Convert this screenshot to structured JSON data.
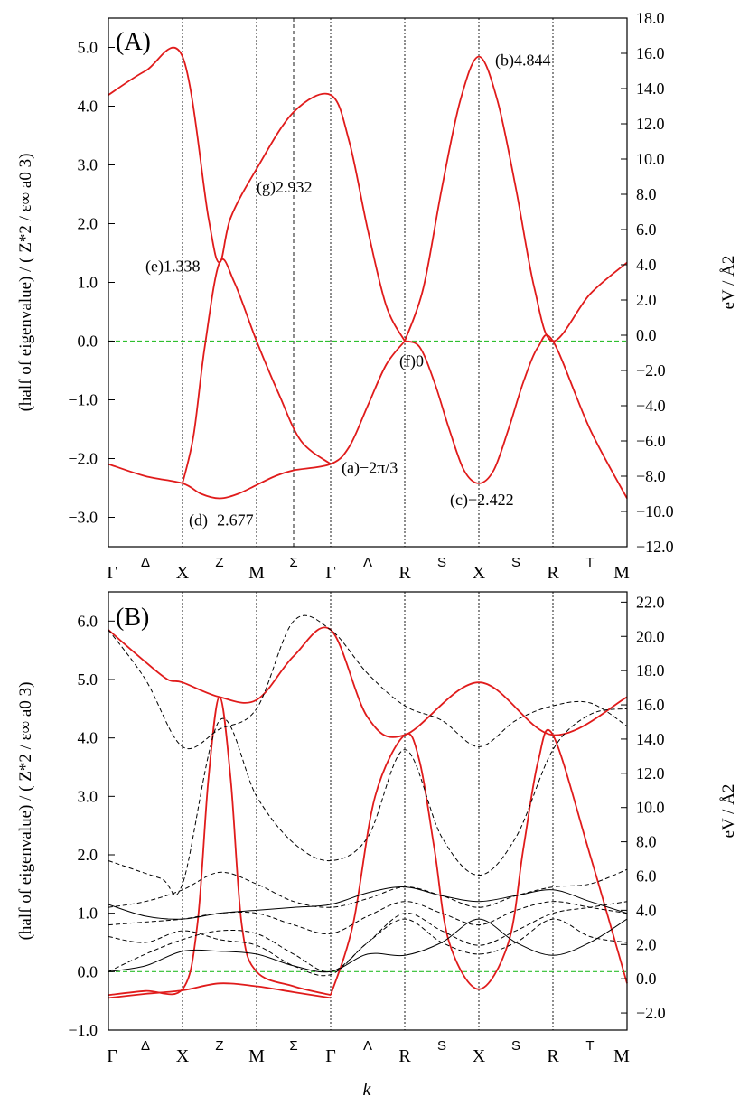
{
  "chart_data": [
    {
      "type": "line",
      "panel_label": "(A)",
      "ylabel_left": "(half of eigenvalue) / ( Z*2 / ε∞ a0 3)",
      "ylabel_right": "eV / Å2",
      "ylim": [
        -3.5,
        5.5
      ],
      "ylim_right": [
        -12.0,
        18.0
      ],
      "yticks": [
        "−3.0",
        "−2.0",
        "−1.0",
        "0.0",
        "1.0",
        "2.0",
        "3.0",
        "4.0",
        "5.0"
      ],
      "yticks_right": [
        "−12.0",
        "−10.0",
        "−8.0",
        "−6.0",
        "−4.0",
        "−2.0",
        "0.0",
        "2.0",
        "4.0",
        "6.0",
        "8.0",
        "10.0",
        "12.0",
        "14.0",
        "16.0",
        "18.0"
      ],
      "kpoints": [
        "Γ",
        "X",
        "M",
        "Γ",
        "R",
        "X",
        "R",
        "M"
      ],
      "segment_labels": [
        "Δ",
        "Z",
        "Σ",
        "Λ",
        "S",
        "S",
        "T"
      ],
      "zero_line": true,
      "annotations": [
        {
          "text": "(a)−2π/3",
          "x": 3.0,
          "y": -2.094
        },
        {
          "text": "(b)4.844",
          "x": 5.0,
          "y": 4.844
        },
        {
          "text": "(c)−2.422",
          "x": 5.0,
          "y": -2.422
        },
        {
          "text": "(d)−2.677",
          "x": 1.5,
          "y": -2.677
        },
        {
          "text": "(e)1.338",
          "x": 1.5,
          "y": 1.338
        },
        {
          "text": "(f)0",
          "x": 4.0,
          "y": 0.0
        },
        {
          "text": "(g)2.932",
          "x": 2.0,
          "y": 2.932
        }
      ],
      "series": [
        {
          "style": "solid-red",
          "x": [
            0,
            0.5,
            1.0,
            1.35,
            1.5,
            1.65,
            2.0,
            2.5,
            3.0,
            3.25,
            3.5,
            3.75,
            4.0
          ],
          "y": [
            4.19,
            4.6,
            4.844,
            2.1,
            1.338,
            2.1,
            2.932,
            3.9,
            4.19,
            3.4,
            1.9,
            0.6,
            0.0
          ]
        },
        {
          "style": "solid-red",
          "x": [
            0,
            0.5,
            1.0,
            1.25,
            1.5,
            1.75,
            2.0,
            2.25,
            2.5,
            3.0,
            3.25,
            3.5,
            3.75,
            4.0
          ],
          "y": [
            -2.094,
            -2.3,
            -2.422,
            -2.6,
            -2.677,
            -2.6,
            -2.45,
            -2.3,
            -2.2,
            -2.094,
            -1.8,
            -1.1,
            -0.4,
            0.0
          ]
        },
        {
          "style": "solid-red",
          "x": [
            1.0,
            1.15,
            1.3,
            1.5,
            1.7,
            2.0,
            2.3,
            2.6,
            3.0
          ],
          "y": [
            -2.422,
            -1.6,
            -0.1,
            1.338,
            1.0,
            0.0,
            -0.9,
            -1.7,
            -2.094
          ]
        },
        {
          "style": "solid-red",
          "x": [
            4.0,
            4.25,
            4.5,
            4.75,
            5.0,
            5.25,
            5.5,
            5.75,
            6.0,
            6.5,
            7.0
          ],
          "y": [
            0.0,
            0.9,
            2.6,
            4.1,
            4.844,
            4.1,
            2.6,
            0.9,
            0.0,
            0.8,
            1.338
          ]
        },
        {
          "style": "solid-red",
          "x": [
            4.0,
            4.2,
            4.4,
            4.6,
            4.8,
            5.0,
            5.2,
            5.4,
            5.6,
            5.8,
            6.0,
            6.5,
            7.0
          ],
          "y": [
            0.0,
            -0.1,
            -0.7,
            -1.5,
            -2.2,
            -2.422,
            -2.2,
            -1.5,
            -0.7,
            -0.1,
            0.0,
            -1.5,
            -2.677
          ]
        }
      ]
    },
    {
      "type": "line",
      "panel_label": "(B)",
      "ylabel_left": "(half of eigenvalue) / ( Z*2 / ε∞ a0 3)",
      "ylabel_right": "eV / Å2",
      "xlabel": "k",
      "ylim": [
        -1.0,
        6.5
      ],
      "ylim_right": [
        -3.0,
        22.6
      ],
      "yticks": [
        "−1.0",
        "0.0",
        "1.0",
        "2.0",
        "3.0",
        "4.0",
        "5.0",
        "6.0"
      ],
      "yticks_right": [
        "−2.0",
        "0.0",
        "2.0",
        "4.0",
        "6.0",
        "8.0",
        "10.0",
        "12.0",
        "14.0",
        "16.0",
        "18.0",
        "20.0",
        "22.0"
      ],
      "kpoints": [
        "Γ",
        "X",
        "M",
        "Γ",
        "R",
        "X",
        "R",
        "M"
      ],
      "segment_labels": [
        "Δ",
        "Z",
        "Σ",
        "Λ",
        "S",
        "S",
        "T"
      ],
      "zero_line": true,
      "series": [
        {
          "style": "solid-red",
          "x": [
            0,
            0.5,
            0.8,
            1.0,
            1.5,
            2.0,
            2.5,
            3.0,
            3.5,
            4.0,
            5.0,
            6.0,
            7.0
          ],
          "y": [
            5.85,
            5.3,
            5.0,
            4.95,
            4.7,
            4.65,
            5.4,
            5.85,
            4.35,
            4.05,
            4.95,
            4.05,
            4.7
          ]
        },
        {
          "style": "solid-red",
          "x": [
            0,
            0.5,
            1.0,
            1.2,
            1.35,
            1.5,
            1.65,
            1.8,
            2.0,
            2.5,
            3.0
          ],
          "y": [
            -0.4,
            -0.33,
            -0.3,
            0.8,
            3.3,
            4.7,
            3.3,
            0.8,
            0.0,
            -0.25,
            -0.4
          ]
        },
        {
          "style": "solid-red",
          "x": [
            3.0,
            3.3,
            3.6,
            4.0,
            4.2,
            4.4,
            4.6,
            5.0,
            5.4,
            5.6,
            5.8,
            6.0,
            6.5,
            7.0
          ],
          "y": [
            -0.4,
            0.8,
            3.0,
            4.05,
            3.6,
            2.1,
            0.5,
            -0.3,
            0.5,
            2.1,
            3.6,
            4.05,
            2.0,
            -0.2
          ]
        },
        {
          "style": "solid-red",
          "x": [
            0,
            0.5,
            1.0,
            1.5,
            2.0,
            2.5,
            3.0
          ],
          "y": [
            -0.45,
            -0.38,
            -0.32,
            -0.2,
            -0.25,
            -0.35,
            -0.45
          ]
        },
        {
          "style": "dashed-black",
          "x": [
            0,
            0.5,
            1.0,
            1.5,
            2.0,
            2.5,
            3.0,
            3.5,
            4.0,
            4.5,
            5.0,
            5.5,
            6.0,
            6.5,
            7.0
          ],
          "y": [
            5.85,
            5.0,
            3.85,
            4.15,
            4.5,
            6.0,
            5.85,
            5.1,
            4.55,
            4.3,
            3.85,
            4.3,
            4.55,
            4.6,
            4.2
          ]
        },
        {
          "style": "dashed-black",
          "x": [
            0,
            0.7,
            1.0,
            1.5,
            2.0,
            2.5,
            3.0,
            3.5,
            4.0,
            4.5,
            5.0,
            5.5,
            6.0,
            6.5,
            7.0
          ],
          "y": [
            1.9,
            1.6,
            1.5,
            4.3,
            3.0,
            2.2,
            1.9,
            2.3,
            3.8,
            2.3,
            1.65,
            2.3,
            3.8,
            4.4,
            4.5
          ]
        },
        {
          "style": "dashed-black",
          "x": [
            0,
            0.5,
            1.0,
            1.5,
            2.0,
            2.5,
            3.0,
            3.5,
            4.0,
            4.5,
            5.0,
            5.5,
            6.0,
            6.5,
            7.0
          ],
          "y": [
            1.1,
            1.2,
            1.4,
            1.7,
            1.5,
            1.2,
            1.1,
            1.25,
            1.45,
            1.3,
            1.1,
            1.3,
            1.45,
            1.5,
            1.75
          ]
        },
        {
          "style": "dashed-black",
          "x": [
            0,
            0.5,
            1.0,
            1.5,
            2.0,
            2.5,
            3.0,
            3.5,
            4.0,
            4.5,
            5.0,
            5.5,
            6.0,
            6.5,
            7.0
          ],
          "y": [
            0.8,
            0.85,
            0.9,
            1.0,
            1.0,
            0.8,
            0.65,
            0.95,
            1.2,
            1.0,
            0.8,
            1.05,
            1.2,
            1.1,
            1.0
          ]
        },
        {
          "style": "dashed-black",
          "x": [
            0,
            0.5,
            1.0,
            1.5,
            2.0,
            2.5,
            3.0,
            3.5,
            4.0,
            4.5,
            5.0,
            5.5,
            6.0,
            6.5,
            7.0
          ],
          "y": [
            0.0,
            0.3,
            0.55,
            0.7,
            0.65,
            0.3,
            0.0,
            0.5,
            1.0,
            0.7,
            0.45,
            0.7,
            1.0,
            1.1,
            1.2
          ]
        },
        {
          "style": "dashed-black",
          "x": [
            0,
            0.5,
            1.0,
            1.5,
            2.0,
            2.5,
            3.0,
            3.5,
            4.0,
            4.5,
            5.0,
            5.5,
            6.0,
            6.5,
            7.0
          ],
          "y": [
            0.6,
            0.5,
            0.7,
            0.55,
            0.45,
            0.1,
            -0.05,
            0.5,
            0.9,
            0.5,
            0.3,
            0.5,
            0.9,
            0.6,
            0.5
          ]
        },
        {
          "style": "solid-black",
          "x": [
            0,
            0.5,
            1.0,
            1.5,
            2.0,
            2.5,
            3.0,
            3.5,
            4.0,
            4.5,
            5.0,
            5.5,
            6.0,
            6.5,
            7.0
          ],
          "y": [
            1.15,
            0.95,
            0.9,
            1.0,
            1.05,
            1.1,
            1.15,
            1.35,
            1.45,
            1.3,
            1.2,
            1.3,
            1.4,
            1.2,
            1.0
          ]
        },
        {
          "style": "solid-black",
          "x": [
            0,
            0.5,
            1.0,
            1.5,
            2.0,
            2.5,
            3.0,
            3.5,
            4.0,
            4.5,
            5.0,
            5.5,
            6.0,
            6.5,
            7.0
          ],
          "y": [
            0.0,
            0.1,
            0.35,
            0.35,
            0.3,
            0.1,
            0.0,
            0.3,
            0.28,
            0.5,
            0.9,
            0.5,
            0.28,
            0.5,
            0.9
          ]
        }
      ]
    }
  ]
}
